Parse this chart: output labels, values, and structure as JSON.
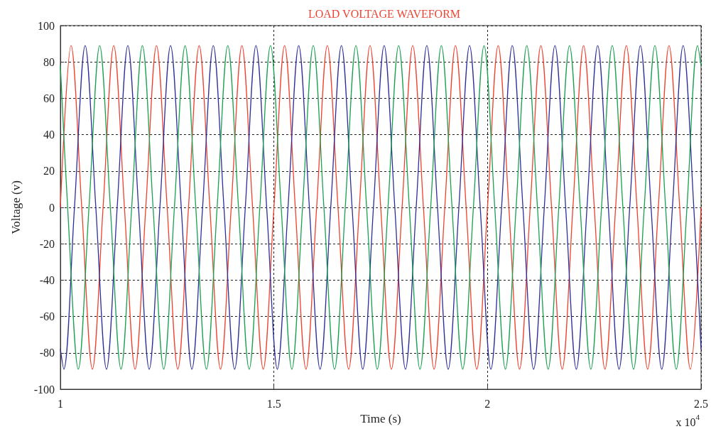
{
  "chart_data": {
    "type": "line",
    "title": "LOAD VOLTAGE WAVEFORM",
    "xlabel": "Time (s)",
    "ylabel": "Voltage (v)",
    "annotations": [
      "x 10$^{4}$"
    ],
    "xlim": [
      1,
      2.5
    ],
    "xticks": [
      1,
      1.5,
      2,
      2.5
    ],
    "ylim": [
      -100,
      100
    ],
    "yticks": [
      -100,
      -80,
      -60,
      -40,
      -20,
      0,
      20,
      40,
      60,
      80,
      100
    ],
    "grid": true,
    "series": [
      {
        "color": "#f0412f",
        "x": [
          1,
          1.025,
          1.05,
          1.075,
          1.1,
          1.125,
          1.15,
          1.175,
          1.2,
          1.225,
          1.25,
          1.275,
          1.3,
          1.325,
          1.35,
          1.375,
          1.4,
          1.425,
          1.45,
          1.475,
          1.5,
          1.525,
          1.55,
          1.575,
          1.6,
          1.625,
          1.65,
          1.675,
          1.7,
          1.725,
          1.75,
          1.775,
          1.8,
          1.825,
          1.85,
          1.875,
          1.9,
          1.925,
          1.95,
          1.975,
          2,
          2.025,
          2.05,
          2.075,
          2.1,
          2.125,
          2.15,
          2.175,
          2.2,
          2.225,
          2.25,
          2.275,
          2.3,
          2.325,
          2.35,
          2.375,
          2.4,
          2.425,
          2.45,
          2.475,
          2.5
        ],
        "values": [
          0,
          89,
          0,
          -89,
          0,
          89,
          0,
          -89,
          0,
          89,
          0,
          -89,
          0,
          89,
          0,
          -89,
          0,
          89,
          0,
          -89,
          0,
          89,
          0,
          -89,
          0,
          89,
          0,
          -89,
          0,
          89,
          0,
          -89,
          0,
          89,
          0,
          -89,
          0,
          89,
          0,
          -89,
          0,
          89,
          0,
          -89,
          0,
          89,
          0,
          -89,
          0,
          89,
          0,
          -89,
          0,
          89,
          0,
          -89,
          0,
          89,
          0,
          -89,
          0
        ]
      },
      {
        "color": "#2e2e9a",
        "x": [
          1,
          1.008,
          1.033,
          1.058,
          1.083,
          1.108,
          1.133,
          1.158,
          1.183,
          1.208,
          1.233,
          1.258,
          1.283,
          1.308,
          1.333,
          1.358,
          1.383,
          1.408,
          1.433,
          1.458,
          1.483,
          1.508,
          1.533,
          1.558,
          1.583,
          1.608,
          1.633,
          1.658,
          1.683,
          1.708,
          1.733,
          1.758,
          1.783,
          1.808,
          1.833,
          1.858,
          1.883,
          1.908,
          1.933,
          1.958,
          1.983,
          2.008,
          2.033,
          2.058,
          2.083,
          2.108,
          2.133,
          2.158,
          2.183,
          2.208,
          2.233,
          2.258,
          2.283,
          2.308,
          2.333,
          2.358,
          2.383,
          2.408,
          2.433,
          2.458,
          2.483,
          2.5
        ],
        "values": [
          -78,
          -89,
          0,
          89,
          0,
          -89,
          0,
          89,
          0,
          -89,
          0,
          89,
          0,
          -89,
          0,
          89,
          0,
          -89,
          0,
          89,
          0,
          -89,
          0,
          89,
          0,
          -89,
          0,
          89,
          0,
          -89,
          0,
          89,
          0,
          -89,
          0,
          89,
          0,
          -89,
          0,
          89,
          0,
          -89,
          0,
          89,
          0,
          -89,
          0,
          89,
          0,
          -89,
          0,
          89,
          0,
          -89,
          0,
          89,
          0,
          -89,
          0,
          89,
          0,
          -78
        ]
      },
      {
        "color": "#1aa050",
        "x": [
          1,
          1.017,
          1.042,
          1.067,
          1.092,
          1.117,
          1.142,
          1.167,
          1.192,
          1.217,
          1.242,
          1.267,
          1.292,
          1.317,
          1.342,
          1.367,
          1.392,
          1.417,
          1.442,
          1.467,
          1.492,
          1.517,
          1.542,
          1.567,
          1.592,
          1.617,
          1.642,
          1.667,
          1.692,
          1.717,
          1.742,
          1.767,
          1.792,
          1.817,
          1.842,
          1.867,
          1.892,
          1.917,
          1.942,
          1.967,
          1.992,
          2.017,
          2.042,
          2.067,
          2.092,
          2.117,
          2.142,
          2.167,
          2.192,
          2.217,
          2.242,
          2.267,
          2.292,
          2.317,
          2.342,
          2.367,
          2.392,
          2.417,
          2.442,
          2.467,
          2.492,
          2.5
        ],
        "values": [
          78,
          0,
          -89,
          0,
          89,
          0,
          -89,
          0,
          89,
          0,
          -89,
          0,
          89,
          0,
          -89,
          0,
          89,
          0,
          -89,
          0,
          89,
          0,
          -89,
          0,
          89,
          0,
          -89,
          0,
          89,
          0,
          -89,
          0,
          89,
          0,
          -89,
          0,
          89,
          0,
          -89,
          0,
          89,
          0,
          -89,
          0,
          89,
          0,
          -89,
          0,
          89,
          0,
          -89,
          0,
          89,
          0,
          -89,
          0,
          89,
          0,
          -89,
          0,
          89,
          78
        ]
      }
    ]
  }
}
